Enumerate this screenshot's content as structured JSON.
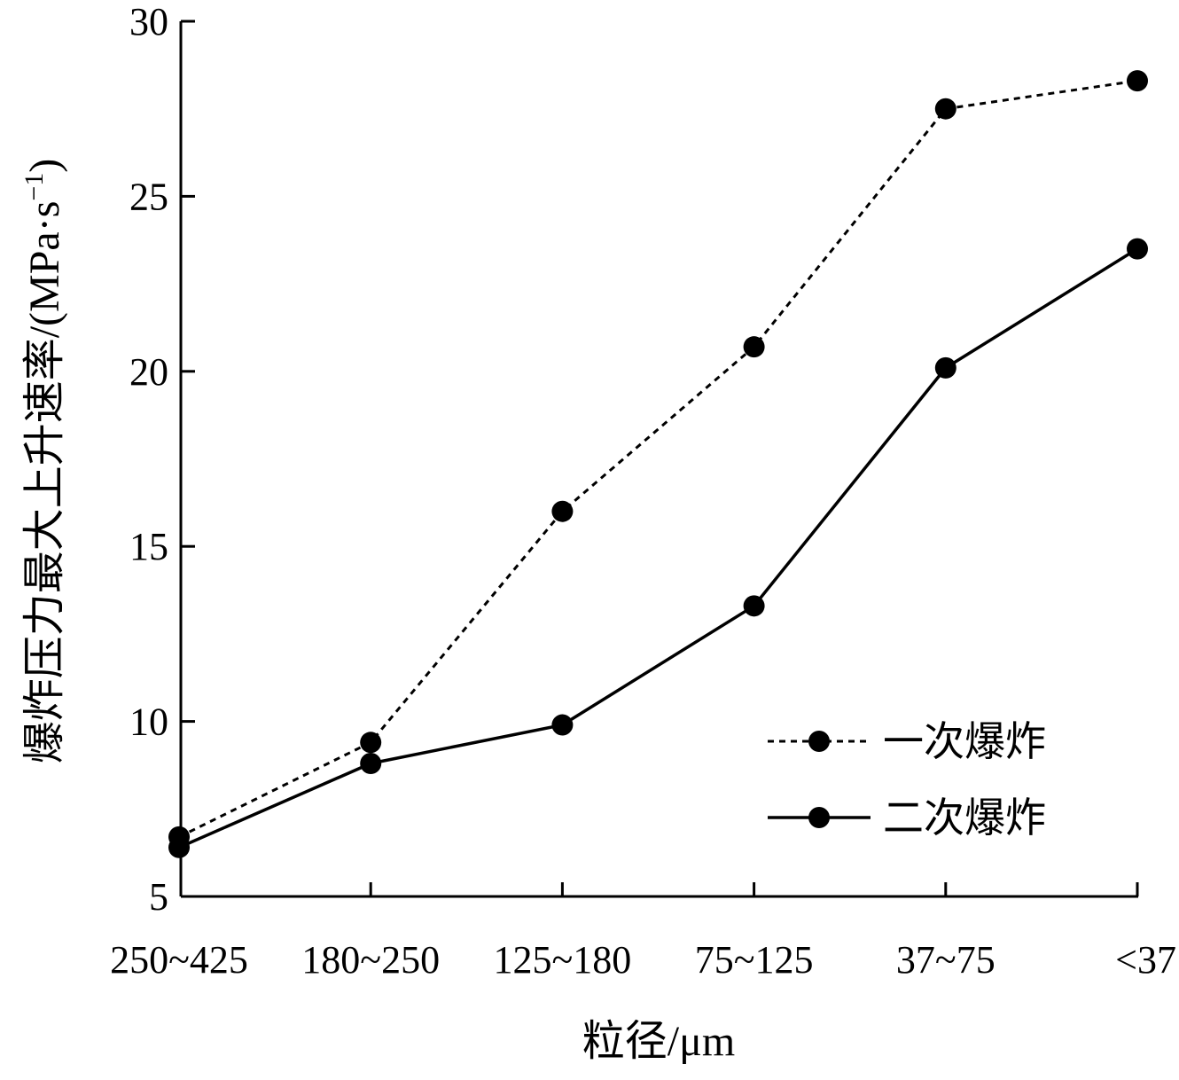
{
  "chart_data": {
    "type": "line",
    "title": "",
    "xlabel": "粒径/μm",
    "ylabel": "爆炸压力最大上升速率/(MPa·s⁻¹)",
    "ylabel_main": "爆炸压力最大上升速率/(MPa·s",
    "ylabel_sup": "−1",
    "ylabel_close": ")",
    "categories": [
      "250~425",
      "180~250",
      "125~180",
      "75~125",
      "37~75",
      "<37"
    ],
    "y_ticks": [
      "5",
      "10",
      "15",
      "20",
      "25",
      "30"
    ],
    "ylim": [
      5,
      30
    ],
    "grid": false,
    "legend_position": "lower-right",
    "series": [
      {
        "name": "一次爆炸",
        "line_style": "dashed",
        "color": "#000000",
        "values": [
          6.7,
          9.4,
          16.0,
          20.7,
          27.5,
          28.3
        ]
      },
      {
        "name": "二次爆炸",
        "line_style": "solid",
        "color": "#000000",
        "values": [
          6.4,
          8.8,
          9.9,
          13.3,
          20.1,
          23.5
        ]
      }
    ]
  }
}
